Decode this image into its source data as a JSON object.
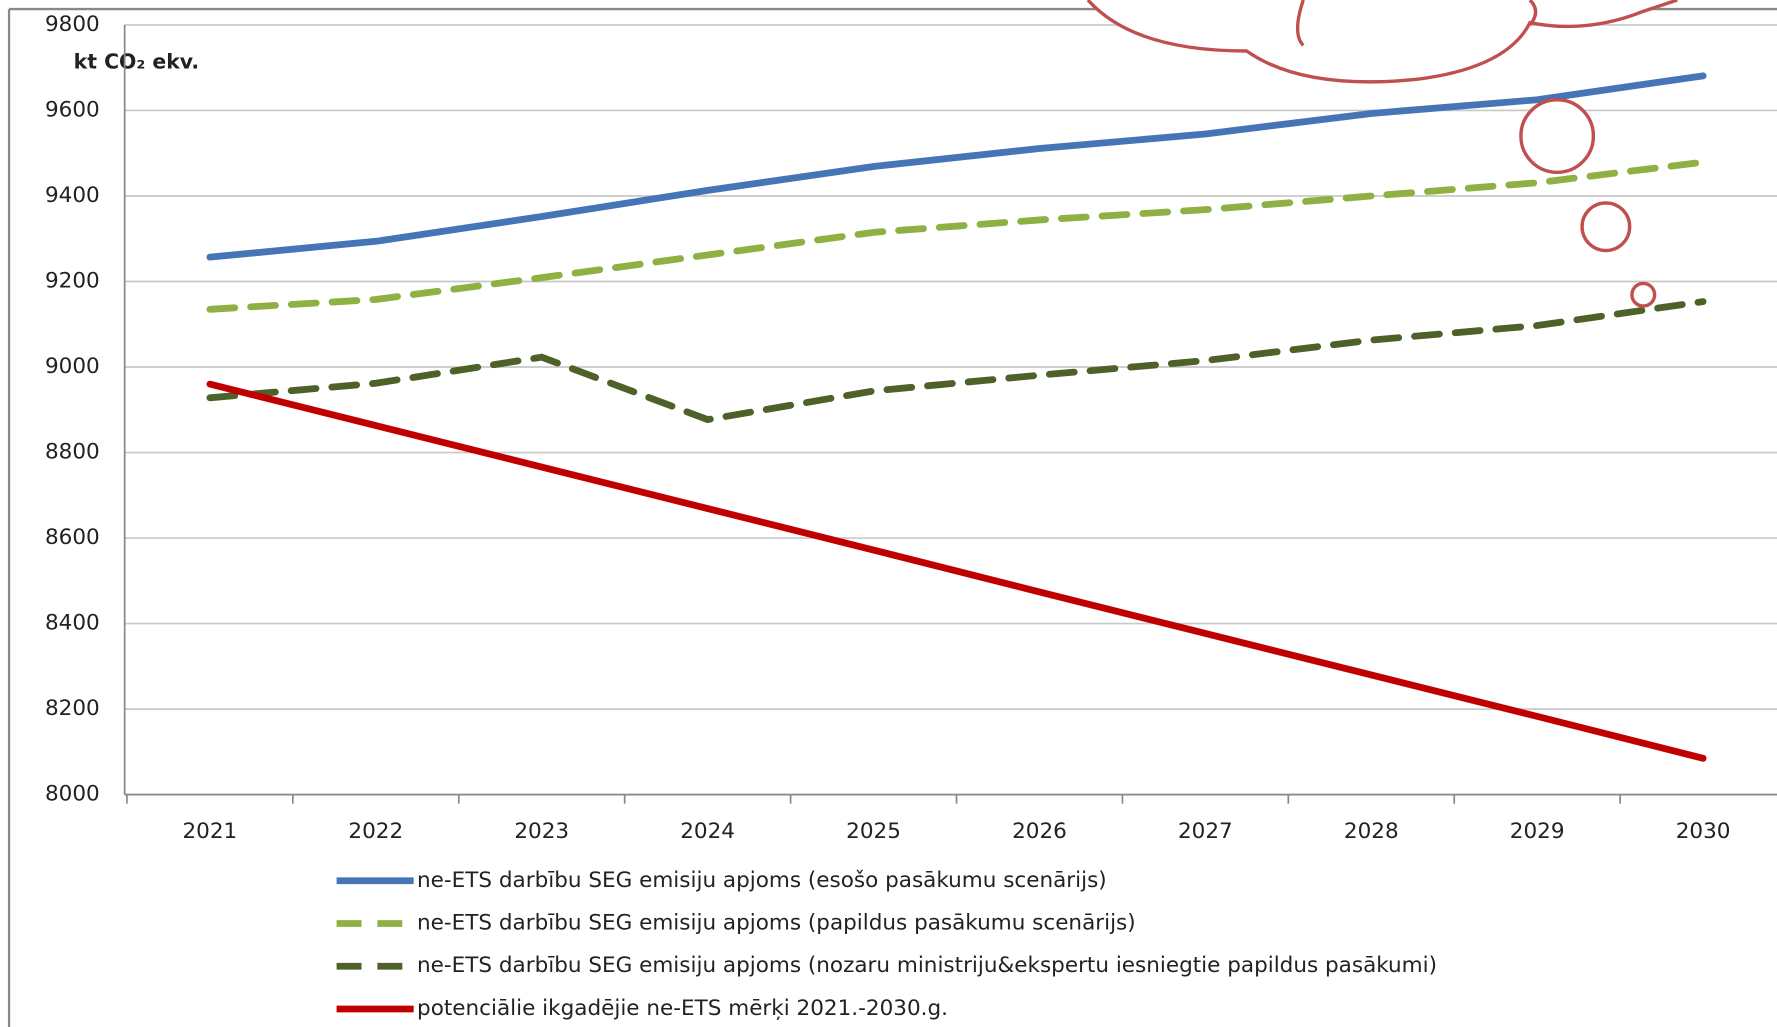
{
  "chart_data": {
    "type": "line",
    "y_label": "kt CO₂ ekv.",
    "categories": [
      "2021",
      "2022",
      "2023",
      "2024",
      "2025",
      "2026",
      "2027",
      "2028",
      "2029",
      "2030"
    ],
    "series": [
      {
        "name": "ne-ETS darbību SEG emisiju apjoms (esošo pasākumu scenārijs)",
        "color": "#4575b4",
        "line_style": "solid",
        "values": [
          9257,
          9294,
          9352,
          9413,
          9469,
          9511,
          9545,
          9593,
          9625,
          9681
        ]
      },
      {
        "name": "ne-ETS darbību SEG emisiju apjoms (papildus pasākumu scenārijs)",
        "color": "#8fb043",
        "line_style": "dashed",
        "values": [
          9135,
          9158,
          9209,
          9262,
          9315,
          9344,
          9368,
          9400,
          9431,
          9479
        ]
      },
      {
        "name": "ne-ETS darbību SEG emisiju apjoms (nozaru ministriju&ekspertu iesniegtie papildus pasākumi)",
        "color": "#4e6128",
        "line_style": "dashed",
        "values": [
          8928,
          8962,
          9023,
          8877,
          8944,
          8981,
          9015,
          9063,
          9097,
          9153
        ]
      },
      {
        "name": "potenciālie ikgadējie ne-ETS mērķi 2021.-2030.g.",
        "color": "#c00000",
        "line_style": "solid",
        "values": [
          8960,
          8863,
          8766,
          8669,
          8572,
          8474,
          8377,
          8280,
          8183,
          8085
        ]
      }
    ],
    "ylim": [
      8000,
      9800
    ],
    "yticks": [
      8000,
      8200,
      8400,
      8600,
      8800,
      9000,
      9200,
      9400,
      9600,
      9800
    ],
    "grid": true
  }
}
